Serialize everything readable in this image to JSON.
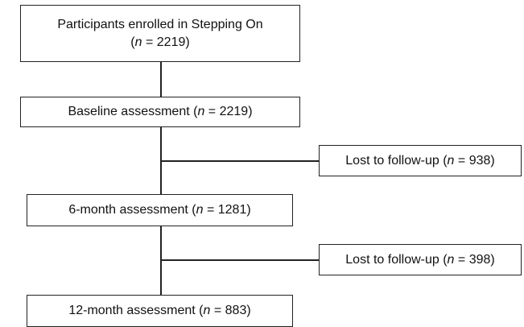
{
  "nodes": {
    "enrolled": {
      "line1": "Participants enrolled in Stepping On",
      "open": "(",
      "n": "n",
      "value": " = 2219)"
    },
    "baseline": {
      "label": "Baseline assessment (",
      "n": "n",
      "value": " = 2219)"
    },
    "lost1": {
      "label": "Lost to follow-up (",
      "n": "n",
      "value": " = 938)"
    },
    "month6": {
      "label": "6-month assessment  (",
      "n": "n",
      "value": " = 1281)"
    },
    "lost2": {
      "label": "Lost to follow-up (",
      "n": "n",
      "value": " = 398)"
    },
    "month12": {
      "label": "12-month assessment (",
      "n": "n",
      "value": " = 883)"
    }
  },
  "colors": {
    "line": "#222222",
    "text": "#111111",
    "background": "#ffffff"
  }
}
